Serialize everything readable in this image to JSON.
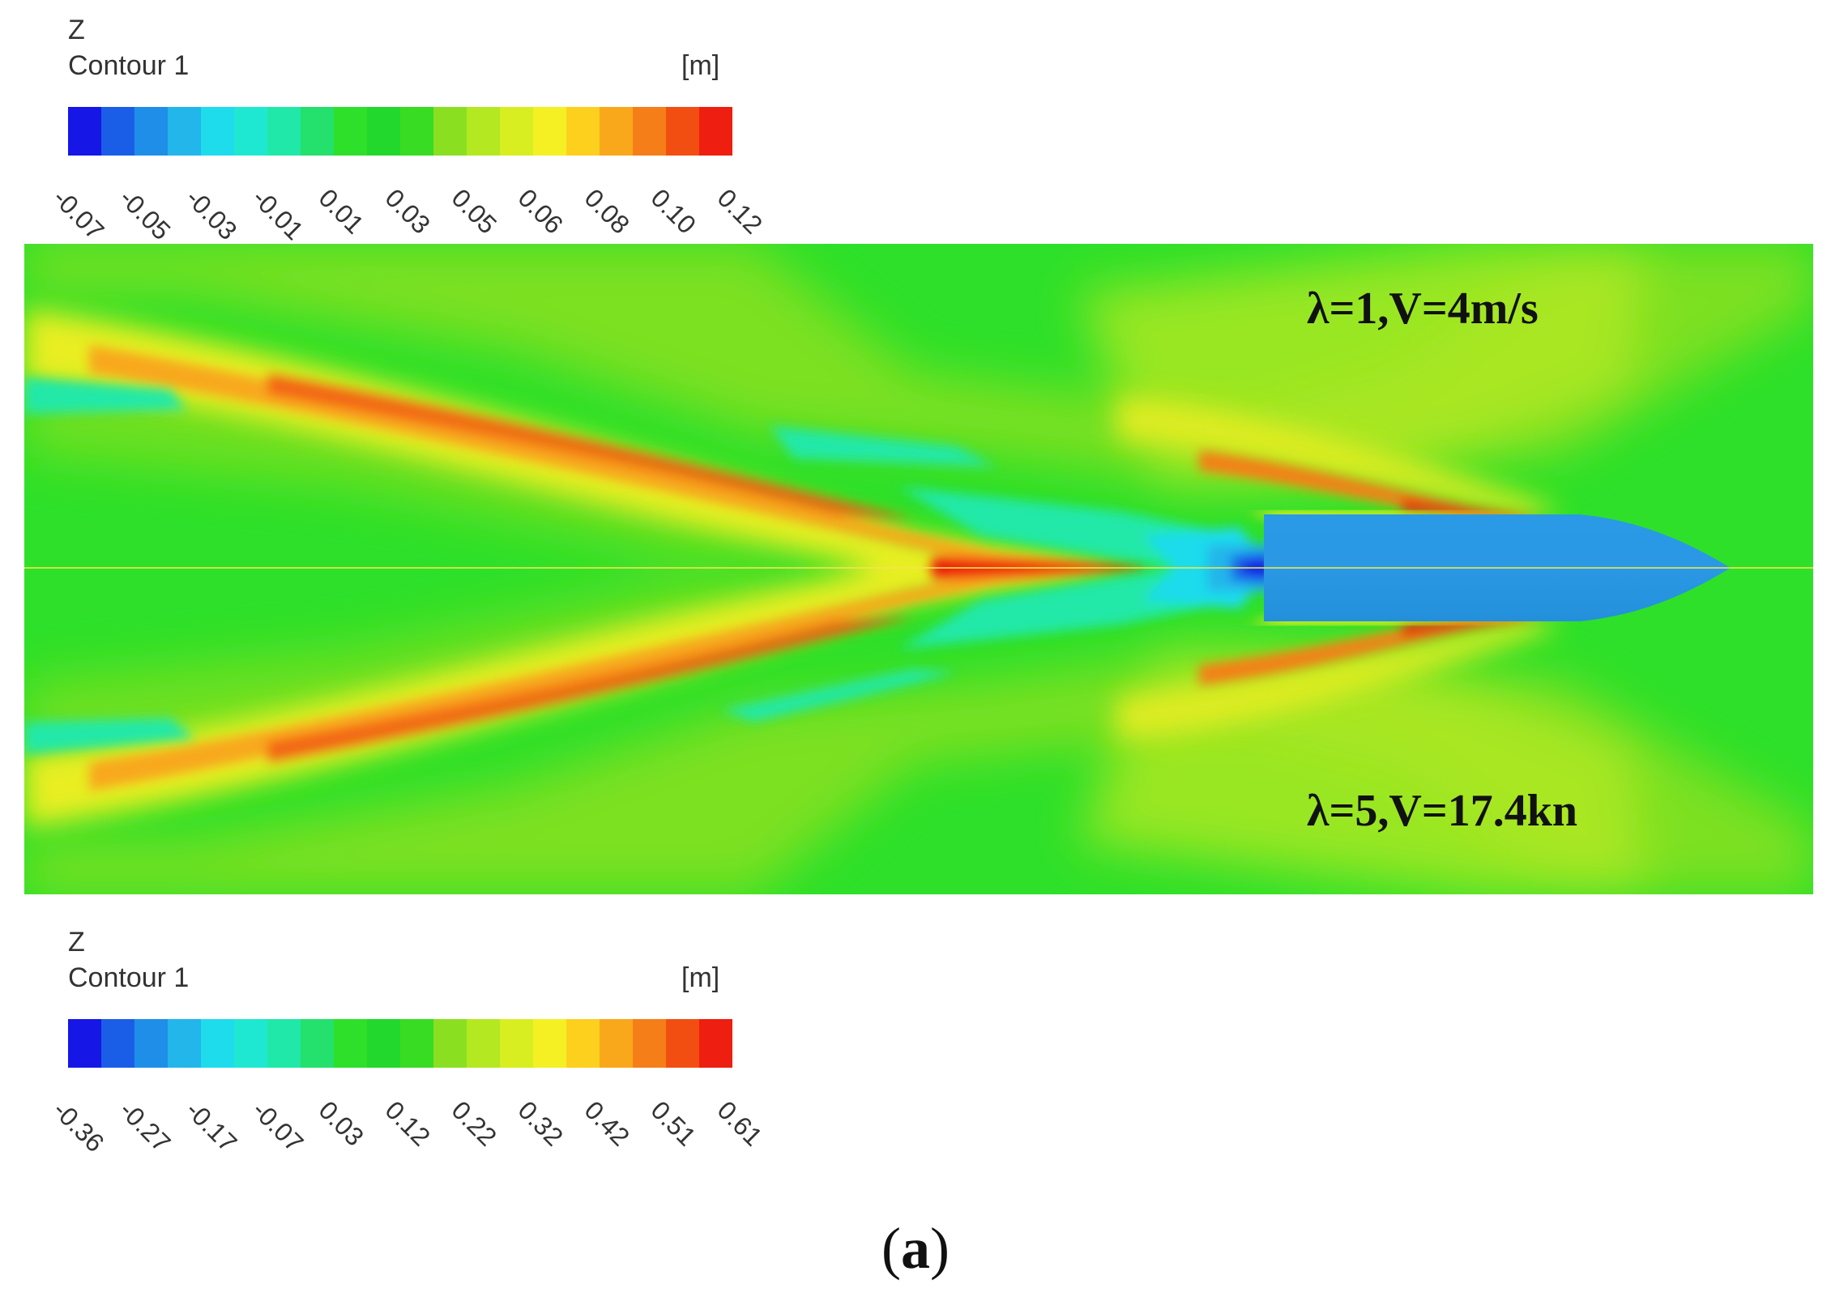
{
  "legend_top": {
    "variable": "Z",
    "name": "Contour 1",
    "unit": "[m]",
    "ticks": [
      "-0.07",
      "-0.05",
      "-0.03",
      "-0.01",
      "0.01",
      "0.03",
      "0.05",
      "0.06",
      "0.08",
      "0.10",
      "0.12"
    ]
  },
  "legend_bottom": {
    "variable": "Z",
    "name": "Contour 1",
    "unit": "[m]",
    "ticks": [
      "-0.36",
      "-0.27",
      "-0.17",
      "-0.07",
      "0.03",
      "0.12",
      "0.22",
      "0.32",
      "0.42",
      "0.51",
      "0.61"
    ]
  },
  "colormap": [
    "#1616e6",
    "#1a5ee8",
    "#1f8ee8",
    "#22b6ea",
    "#1fdcec",
    "#1fe8d2",
    "#20e8a8",
    "#24e06c",
    "#2ee02a",
    "#22d82c",
    "#38dc22",
    "#8ae020",
    "#b4e820",
    "#d8ee20",
    "#f4f024",
    "#fcd01c",
    "#f8a81a",
    "#f57e18",
    "#f24e12",
    "#ee1e10"
  ],
  "annotations": {
    "top": "λ=1,V=4m/s",
    "bottom": "λ=5,V=17.4kn"
  },
  "caption": {
    "open": "(",
    "label": "a",
    "close": ")"
  }
}
